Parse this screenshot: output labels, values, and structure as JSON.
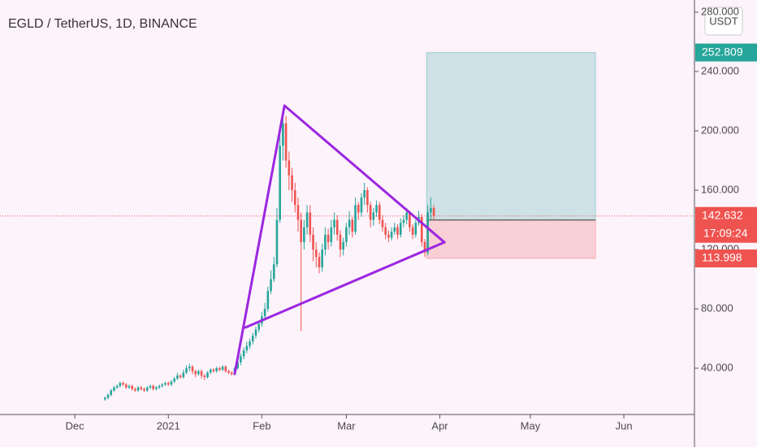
{
  "chart_data": {
    "type": "candlestick",
    "title": "EGLD / TetherUS, 1D, BINANCE",
    "currency": "USDT",
    "up_color": "#26a69a",
    "down_color": "#ef5350",
    "x": [
      10,
      11,
      12,
      13,
      14,
      15,
      16,
      17,
      18,
      19,
      20,
      21,
      22,
      23,
      24,
      25,
      26,
      27,
      28,
      29,
      30,
      31,
      32,
      33,
      34,
      35,
      36,
      37,
      38,
      39,
      40,
      41,
      42,
      43,
      44,
      45,
      46,
      47,
      48,
      49,
      50,
      51,
      52,
      53,
      54,
      55,
      56,
      57,
      58,
      59,
      60,
      61,
      62,
      63,
      64,
      65,
      66,
      67,
      68,
      69,
      70,
      71,
      72,
      73,
      74,
      75,
      76,
      77,
      78,
      79,
      80,
      81,
      82,
      83,
      84,
      85,
      86,
      87,
      88,
      89,
      90,
      91,
      92,
      93,
      94,
      95,
      96,
      97,
      98,
      99,
      100,
      101,
      102,
      103,
      104,
      105,
      106,
      107,
      108,
      109,
      110,
      111,
      112,
      113,
      114,
      115,
      116,
      117,
      118,
      119
    ],
    "open": [
      19,
      20,
      22,
      25,
      27,
      28,
      30,
      29,
      27,
      28,
      26,
      25,
      27,
      26,
      25,
      27,
      28,
      26,
      27,
      28,
      29,
      30,
      29,
      31,
      33,
      35,
      34,
      37,
      40,
      41,
      38,
      36,
      38,
      35,
      34,
      37,
      39,
      38,
      40,
      39,
      41,
      38,
      37,
      36,
      40,
      44,
      48,
      52,
      55,
      58,
      62,
      66,
      70,
      75,
      80,
      92,
      100,
      110,
      140,
      190,
      205,
      180,
      170,
      160,
      150,
      140,
      125,
      135,
      145,
      130,
      120,
      115,
      108,
      120,
      130,
      125,
      135,
      140,
      130,
      120,
      125,
      135,
      140,
      132,
      150,
      145,
      155,
      160,
      150,
      140,
      145,
      150,
      140,
      135,
      130,
      128,
      132,
      135,
      130,
      138,
      140,
      145,
      135,
      130,
      138,
      142,
      125,
      118,
      145,
      148
    ],
    "high": [
      21,
      23,
      26,
      28,
      29,
      31,
      31,
      30,
      29,
      29,
      27,
      28,
      28,
      27,
      28,
      29,
      29,
      28,
      29,
      30,
      31,
      31,
      32,
      34,
      37,
      36,
      39,
      42,
      43,
      42,
      39,
      39,
      39,
      36,
      38,
      40,
      40,
      41,
      41,
      42,
      42,
      39,
      38,
      41,
      46,
      50,
      54,
      58,
      60,
      64,
      68,
      72,
      78,
      84,
      95,
      106,
      115,
      148,
      200,
      215,
      210,
      186,
      175,
      165,
      155,
      145,
      140,
      150,
      150,
      135,
      125,
      118,
      124,
      135,
      134,
      140,
      145,
      143,
      133,
      128,
      138,
      146,
      142,
      155,
      152,
      158,
      165,
      162,
      152,
      148,
      153,
      152,
      143,
      138,
      133,
      135,
      138,
      137,
      141,
      143,
      148,
      146,
      137,
      140,
      146,
      144,
      127,
      150,
      155,
      150
    ],
    "low": [
      18,
      19,
      21,
      24,
      26,
      27,
      28,
      26,
      26,
      25,
      24,
      24,
      25,
      24,
      24,
      26,
      25,
      25,
      26,
      27,
      28,
      28,
      28,
      30,
      32,
      33,
      33,
      36,
      38,
      36,
      34,
      35,
      33,
      32,
      33,
      36,
      37,
      37,
      38,
      38,
      37,
      36,
      35,
      35,
      39,
      42,
      46,
      50,
      53,
      56,
      60,
      64,
      68,
      72,
      78,
      90,
      98,
      108,
      138,
      180,
      175,
      160,
      152,
      145,
      132,
      65,
      120,
      130,
      125,
      112,
      108,
      104,
      105,
      116,
      120,
      122,
      130,
      126,
      115,
      116,
      122,
      130,
      128,
      130,
      140,
      142,
      150,
      145,
      135,
      136,
      142,
      137,
      132,
      127,
      125,
      126,
      130,
      127,
      128,
      135,
      137,
      132,
      127,
      128,
      136,
      122,
      115,
      116,
      140,
      140
    ],
    "close": [
      20,
      22,
      25,
      27,
      28,
      30,
      29,
      27,
      28,
      26,
      25,
      27,
      26,
      25,
      27,
      28,
      26,
      27,
      28,
      29,
      30,
      29,
      31,
      33,
      35,
      34,
      37,
      40,
      41,
      38,
      36,
      38,
      35,
      34,
      37,
      39,
      38,
      40,
      39,
      41,
      38,
      37,
      36,
      40,
      44,
      48,
      52,
      55,
      58,
      62,
      66,
      70,
      75,
      80,
      92,
      100,
      110,
      140,
      190,
      205,
      180,
      170,
      160,
      150,
      140,
      125,
      135,
      145,
      130,
      120,
      115,
      108,
      120,
      130,
      125,
      135,
      140,
      130,
      120,
      125,
      135,
      140,
      132,
      150,
      145,
      155,
      160,
      150,
      140,
      145,
      150,
      140,
      135,
      130,
      128,
      132,
      135,
      130,
      138,
      140,
      145,
      135,
      130,
      138,
      142,
      125,
      118,
      145,
      148,
      142.632
    ],
    "countdown": "17:09:24",
    "position": {
      "x": [
        116.6,
        172.6
      ],
      "target": 252.809,
      "entry": 139.968,
      "stop": 113.998
    },
    "trendlines": [
      [
        53.0,
        36.2,
        69.5,
        217.0
      ],
      [
        69.5,
        217.0,
        122.5,
        124.9
      ],
      [
        56.5,
        67.4,
        122.5,
        124.9
      ]
    ],
    "xlim": [
      -24.8,
      205.4
    ],
    "xticks": [
      {
        "value": 0,
        "label": "Dec"
      },
      {
        "value": 31,
        "label": "2021"
      },
      {
        "value": 62,
        "label": "Feb"
      },
      {
        "value": 90,
        "label": "Mar"
      },
      {
        "value": 121,
        "label": "Apr"
      },
      {
        "value": 151,
        "label": "May"
      },
      {
        "value": 182,
        "label": "Jun"
      }
    ],
    "ylim": [
      8.8,
      288.2
    ],
    "yticks": [
      {
        "value": 40,
        "label": "40.000"
      },
      {
        "value": 80,
        "label": "80.000"
      },
      {
        "value": 120,
        "label": "120.000"
      },
      {
        "value": 160,
        "label": "160.000"
      },
      {
        "value": 200,
        "label": "200.000"
      },
      {
        "value": 240,
        "label": "240.000"
      },
      {
        "value": 280,
        "label": "280.000"
      }
    ]
  }
}
